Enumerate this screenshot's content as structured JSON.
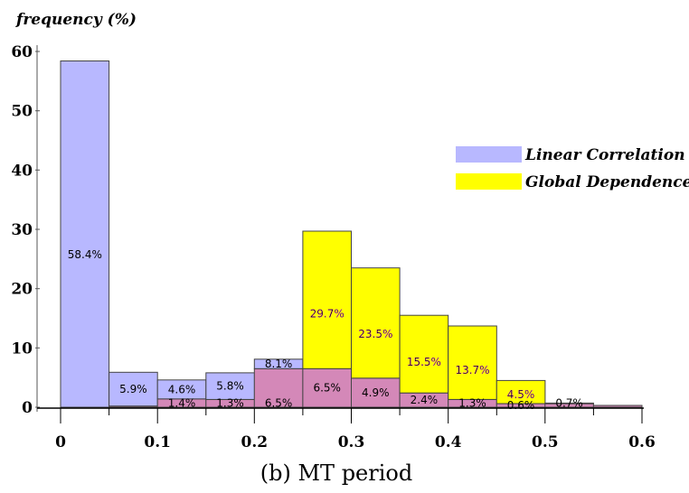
{
  "chart_data": {
    "type": "bar",
    "ylabel": "frequency (%)",
    "xlabel": "(b) MT period",
    "ylim": [
      0,
      60
    ],
    "xlim": [
      0,
      0.6
    ],
    "bin_width": 0.05,
    "yticks": [
      "0",
      "10",
      "20",
      "30",
      "40",
      "50",
      "60"
    ],
    "xticks": [
      "0",
      "0.1",
      "0.2",
      "0.3",
      "0.4",
      "0.5",
      "0.6"
    ],
    "colors": {
      "linear": "#b8b8ff",
      "global": "#ffff00",
      "overlap": "#d488b8",
      "edge": "#444444"
    },
    "legend": {
      "position": "top-right",
      "entries": [
        {
          "name": "Linear Correlation",
          "color": "#b8b8ff"
        },
        {
          "name": "Global Dependence",
          "color": "#ffff00"
        }
      ]
    },
    "series": [
      {
        "name": "Linear Correlation",
        "x": [
          0,
          0.05,
          0.1,
          0.15,
          0.2,
          0.25,
          0.3,
          0.35,
          0.4,
          0.45,
          0.5,
          0.55
        ],
        "values": [
          58.4,
          5.9,
          4.6,
          5.8,
          8.1,
          6.5,
          4.9,
          2.4,
          1.3,
          0.6,
          0.7,
          0.3
        ],
        "labels": [
          "58.4%",
          "5.9%",
          "4.6%",
          "5.8%",
          "8.1%",
          "6.5%",
          "4.9%",
          "2.4%",
          "1.3%",
          "0.6%",
          "0.7%",
          ""
        ]
      },
      {
        "name": "Global Dependence",
        "x": [
          0,
          0.05,
          0.1,
          0.15,
          0.2,
          0.25,
          0.3,
          0.35,
          0.4,
          0.45,
          0.5,
          0.55
        ],
        "values": [
          0,
          0.2,
          1.4,
          1.3,
          6.5,
          29.7,
          23.5,
          15.5,
          13.7,
          4.5,
          0.6,
          0.3
        ],
        "labels": [
          "",
          "",
          "1.4%",
          "1.3%",
          "6.5%",
          "29.7%",
          "23.5%",
          "15.5%",
          "13.7%",
          "4.5%",
          "",
          ""
        ]
      }
    ]
  }
}
